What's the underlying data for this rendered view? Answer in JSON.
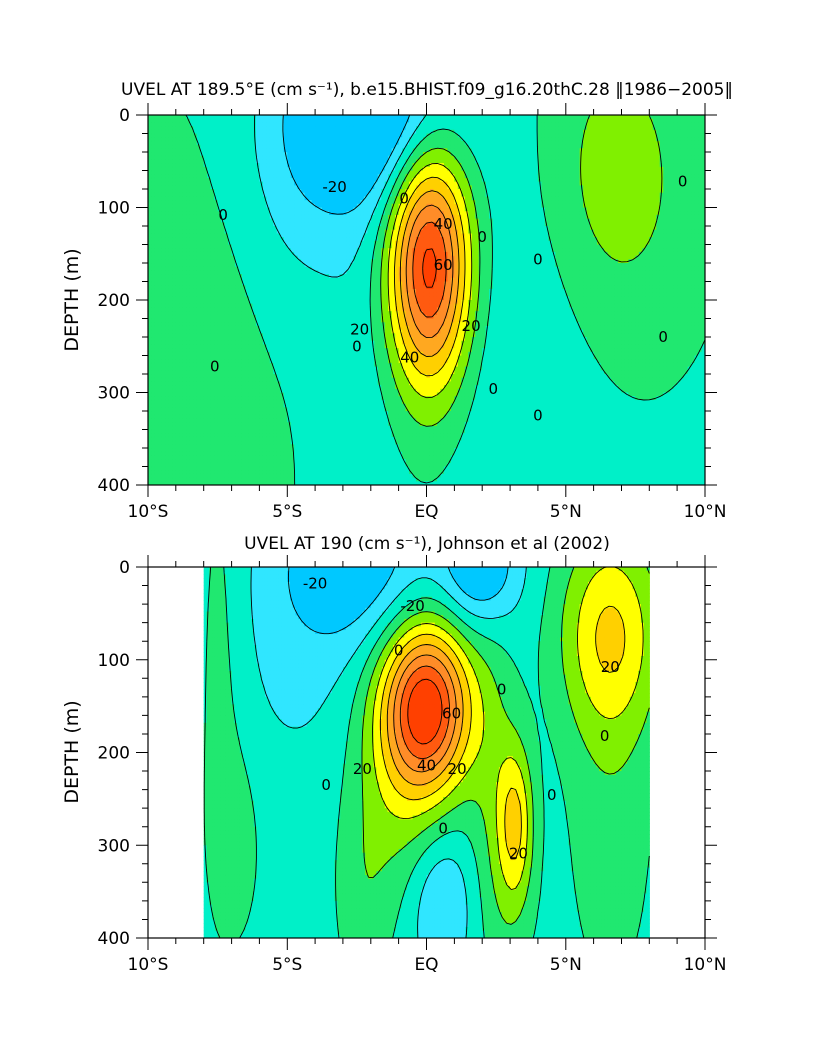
{
  "colors": {
    "fill_-30": "#00c8ff",
    "fill_-20": "#30e6ff",
    "fill_-10": "#00f0c8",
    "fill_0": "#20e870",
    "fill_10": "#80f000",
    "fill_20": "#ffff00",
    "fill_30": "#ffd000",
    "fill_40": "#ffa820",
    "fill_50": "#ff8c28",
    "fill_60": "#ff5a10",
    "fill_70": "#ff4000",
    "contour_line": "#000000"
  },
  "chart_data": [
    {
      "type": "heatmap",
      "title": "UVEL AT 189.5°E (cm s⁻¹), b.e15.BHIST.f09_g16.20thC.28 ‖1986−2005‖",
      "xlabel": "",
      "ylabel": "DEPTH (m)",
      "xlim": [
        -10,
        10
      ],
      "ylim": [
        400,
        0
      ],
      "x_ticks": [
        "10°S",
        "5°S",
        "EQ",
        "5°N",
        "10°N"
      ],
      "x_tick_values": [
        -10,
        -5,
        0,
        5,
        10
      ],
      "y_ticks": [
        "0",
        "100",
        "200",
        "300",
        "400"
      ],
      "y_tick_values": [
        0,
        100,
        200,
        300,
        400
      ],
      "contour_interval": 10,
      "z_range": [
        -30,
        75
      ],
      "features": [
        {
          "kind": "eastward_jet_core",
          "lat": 0.1,
          "depth": 160,
          "value": 70
        },
        {
          "kind": "westward_surface_flow",
          "lat": -1.6,
          "depth": 0,
          "value": -30
        },
        {
          "kind": "eastward_countercurrent",
          "lat": 6.8,
          "depth": 70,
          "value": 15
        },
        {
          "kind": "eastward_deep_flow",
          "lat": -7,
          "depth": 280,
          "value": 5
        }
      ],
      "contour_labels": [
        {
          "text": "-20",
          "lat": -3.3,
          "depth": 78
        },
        {
          "text": "0",
          "lat": -7.3,
          "depth": 108
        },
        {
          "text": "0",
          "lat": -7.6,
          "depth": 272
        },
        {
          "text": "0",
          "lat": -0.8,
          "depth": 90
        },
        {
          "text": "40",
          "lat": 0.6,
          "depth": 118
        },
        {
          "text": "60",
          "lat": 0.6,
          "depth": 162
        },
        {
          "text": "20",
          "lat": -2.4,
          "depth": 232
        },
        {
          "text": "40",
          "lat": -0.6,
          "depth": 262
        },
        {
          "text": "20",
          "lat": 1.6,
          "depth": 228
        },
        {
          "text": "0",
          "lat": -2.5,
          "depth": 250
        },
        {
          "text": "0",
          "lat": 2.0,
          "depth": 132
        },
        {
          "text": "0",
          "lat": 2.4,
          "depth": 296
        },
        {
          "text": "0",
          "lat": 4.0,
          "depth": 156
        },
        {
          "text": "0",
          "lat": 4.0,
          "depth": 325
        },
        {
          "text": "0",
          "lat": 9.2,
          "depth": 72
        },
        {
          "text": "0",
          "lat": 8.5,
          "depth": 240
        }
      ]
    },
    {
      "type": "heatmap",
      "title": "UVEL AT 190 (cm s⁻¹), Johnson et al (2002)",
      "xlabel": "",
      "ylabel": "DEPTH (m)",
      "xlim": [
        -10,
        10
      ],
      "ylim": [
        400,
        0
      ],
      "x_ticks": [
        "10°S",
        "5°S",
        "EQ",
        "5°N",
        "10°N"
      ],
      "x_tick_values": [
        -10,
        -5,
        0,
        5,
        10
      ],
      "y_ticks": [
        "0",
        "100",
        "200",
        "300",
        "400"
      ],
      "y_tick_values": [
        0,
        100,
        200,
        300,
        400
      ],
      "contour_interval": 10,
      "z_range": [
        -30,
        75
      ],
      "data_extent_lat": [
        -8,
        8
      ],
      "features": [
        {
          "kind": "eastward_jet_core",
          "lat": 0.0,
          "depth": 150,
          "value": 70
        },
        {
          "kind": "westward_surface_flow",
          "lat": -2.4,
          "depth": 0,
          "value": -25
        },
        {
          "kind": "westward_surface_flow",
          "lat": 1.9,
          "depth": 0,
          "value": -30
        },
        {
          "kind": "eastward_tsucc",
          "lat": 3.2,
          "depth": 270,
          "value": 25
        },
        {
          "kind": "eastward_countercurrent",
          "lat": 6.6,
          "depth": 80,
          "value": 25
        }
      ],
      "contour_labels": [
        {
          "text": "-20",
          "lat": -4.0,
          "depth": 18
        },
        {
          "text": "-20",
          "lat": -0.5,
          "depth": 42
        },
        {
          "text": "0",
          "lat": -1.0,
          "depth": 90
        },
        {
          "text": "60",
          "lat": 0.9,
          "depth": 158
        },
        {
          "text": "20",
          "lat": -2.3,
          "depth": 218
        },
        {
          "text": "40",
          "lat": 0.0,
          "depth": 214
        },
        {
          "text": "20",
          "lat": 1.1,
          "depth": 218
        },
        {
          "text": "0",
          "lat": 2.7,
          "depth": 132
        },
        {
          "text": "20",
          "lat": 6.6,
          "depth": 108
        },
        {
          "text": "0",
          "lat": 6.4,
          "depth": 182
        },
        {
          "text": "0",
          "lat": -3.6,
          "depth": 235
        },
        {
          "text": "0",
          "lat": 0.6,
          "depth": 282
        },
        {
          "text": "0",
          "lat": 4.5,
          "depth": 246
        },
        {
          "text": "20",
          "lat": 3.3,
          "depth": 309
        }
      ]
    }
  ]
}
